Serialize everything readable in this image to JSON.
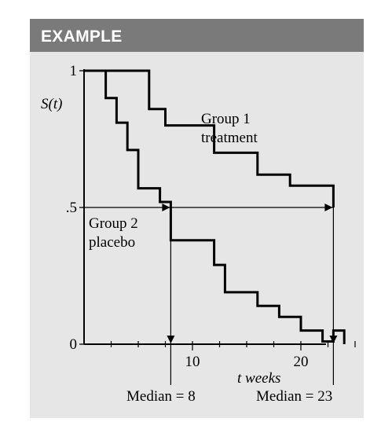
{
  "header": {
    "title": "EXAMPLE"
  },
  "chart_data": {
    "type": "line",
    "subtype": "step (Kaplan-Meier survival curves)",
    "ylabel": "S(t)",
    "xlabel": "t weeks",
    "ylim": [
      0,
      1
    ],
    "xlim": [
      0,
      25
    ],
    "y_ticks": [
      {
        "value": 1,
        "label": "1"
      },
      {
        "value": 0.5,
        "label": ".5"
      },
      {
        "value": 0,
        "label": "0"
      }
    ],
    "x_ticks": [
      {
        "value": 10,
        "label": "10"
      },
      {
        "value": 20,
        "label": "20"
      }
    ],
    "series": [
      {
        "line1": "Group 1",
        "line2": "treatment",
        "points": [
          [
            0,
            1.0
          ],
          [
            6,
            1.0
          ],
          [
            6,
            0.86
          ],
          [
            7.5,
            0.86
          ],
          [
            7.5,
            0.8
          ],
          [
            12,
            0.8
          ],
          [
            12,
            0.7
          ],
          [
            16,
            0.7
          ],
          [
            16,
            0.62
          ],
          [
            19,
            0.62
          ],
          [
            19,
            0.58
          ],
          [
            23,
            0.58
          ],
          [
            23,
            0.5
          ]
        ]
      },
      {
        "line1": "Group 2",
        "line2": "placebo",
        "points": [
          [
            0,
            1.0
          ],
          [
            2,
            1.0
          ],
          [
            2,
            0.9
          ],
          [
            3,
            0.9
          ],
          [
            3,
            0.81
          ],
          [
            4,
            0.81
          ],
          [
            4,
            0.71
          ],
          [
            5,
            0.71
          ],
          [
            5,
            0.57
          ],
          [
            7,
            0.57
          ],
          [
            7,
            0.52
          ],
          [
            8,
            0.52
          ],
          [
            8,
            0.38
          ],
          [
            12,
            0.38
          ],
          [
            12,
            0.29
          ],
          [
            13,
            0.29
          ],
          [
            13,
            0.19
          ],
          [
            16,
            0.19
          ],
          [
            16,
            0.14
          ],
          [
            18,
            0.14
          ],
          [
            18,
            0.1
          ],
          [
            20,
            0.1
          ],
          [
            20,
            0.05
          ],
          [
            22,
            0.05
          ],
          [
            22,
            0.01
          ],
          [
            23,
            0.01
          ],
          [
            23,
            0.05
          ],
          [
            24,
            0.05
          ],
          [
            24,
            0.0
          ]
        ]
      }
    ],
    "medians": [
      {
        "label": "Median = 8",
        "t": 8
      },
      {
        "label": "Median = 23",
        "t": 23
      }
    ]
  }
}
